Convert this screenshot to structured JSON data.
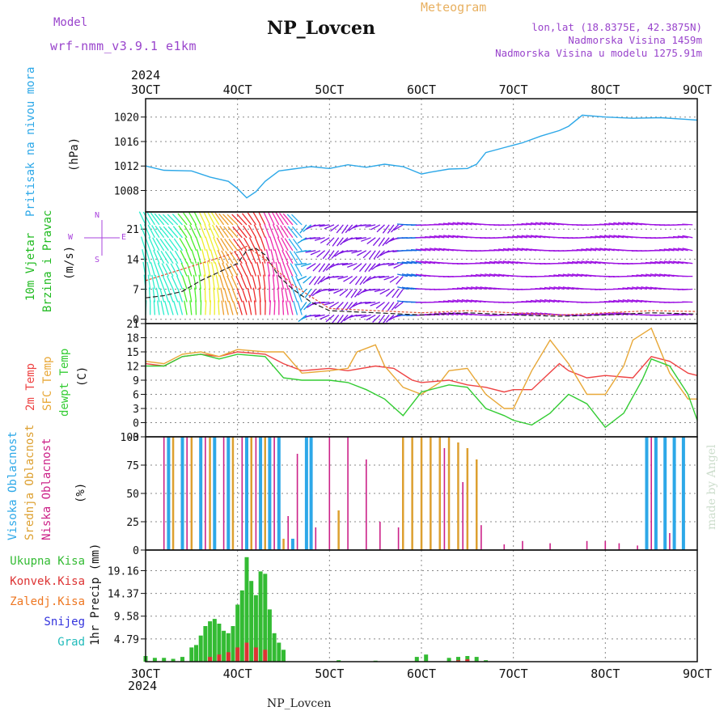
{
  "header": {
    "model_label": "Model",
    "model_name": "wrf-nmm_v3.9.1 e1km",
    "station": "NP_Lovcen",
    "product": "Meteogram",
    "coords": "lon,lat (18.8375E, 42.3875N)",
    "elevation": "Nadmorska Visina 1459m",
    "model_elevation": "Nadmorska Visina u modelu 1275.91m"
  },
  "footer": {
    "station": "NP_Lovcen",
    "credit": "made by Angel"
  },
  "time_axis": {
    "year": "2024",
    "ticks": [
      "3OCT",
      "4OCT",
      "5OCT",
      "6OCT",
      "7OCT",
      "8OCT",
      "9OCT"
    ]
  },
  "colors": {
    "pressure": "#2da8e8",
    "wind_label": "#22bb22",
    "wind_label2": "#22bb22",
    "wind_axis": "#aa44dd",
    "temp": "#ee4444",
    "sfc": "#e8a838",
    "dew": "#33cc33",
    "cloud_high": "#2da8e8",
    "cloud_mid": "#dda030",
    "cloud_low": "#cc2288",
    "precip_total": "#33bb33",
    "precip_conv": "#dd3333",
    "precip_frz": "#ee7722",
    "snow": "#3333dd",
    "grad": "#22bbbb",
    "grid": "#888888",
    "title": "#9944cc"
  },
  "panels": {
    "pressure": {
      "label": "Pritisak na nivou mora",
      "unit": "(hPa)",
      "ticks": [
        "1020",
        "1016",
        "1012",
        "1008"
      ]
    },
    "wind": {
      "label1": "10m Vjetar",
      "label2": "Brzina i Pravac",
      "unit": "(m/s)",
      "compass_n": "N",
      "compass_s": "S",
      "compass_w": "W",
      "compass_e": "E",
      "ticks": [
        "21",
        "14",
        "7",
        "0"
      ]
    },
    "temp": {
      "label1": "2m Temp",
      "label2": "SFC Temp",
      "label3": "dewpt Temp",
      "unit": "(C)",
      "ticks": [
        "21",
        "18",
        "15",
        "12",
        "9",
        "6",
        "3",
        "0",
        "-3"
      ]
    },
    "cloud": {
      "label1": "Visoka Oblacnost",
      "label2": "Srednja Oblacnost",
      "label3": "Niska Oblacnost",
      "unit": "(%)",
      "ticks": [
        "100",
        "75",
        "50",
        "25",
        "0"
      ]
    },
    "precip": {
      "label_total": "Ukupna Kisa",
      "label_conv": "Konvek.Kisa",
      "label_frz": "Zaledj.Kisa",
      "label_snow": "Snijeg",
      "label_grad": "Grad",
      "unit": "1hr Precip (mm)",
      "ticks": [
        "19.16",
        "14.37",
        "9.58",
        "4.79"
      ]
    }
  },
  "chart_data": [
    {
      "type": "line",
      "title": "Pritisak na nivou mora",
      "ylabel": "(hPa)",
      "x_unit": "day of October 2024",
      "ylim": [
        1004.5,
        1023
      ],
      "series": [
        {
          "name": "Pritisak na nivou mora",
          "x": [
            3.0,
            3.2,
            3.5,
            3.7,
            3.9,
            4.0,
            4.1,
            4.2,
            4.3,
            4.45,
            4.6,
            4.8,
            5.0,
            5.2,
            5.4,
            5.6,
            5.8,
            6.0,
            6.1,
            6.3,
            6.5,
            6.6,
            6.7,
            6.9,
            7.1,
            7.3,
            7.5,
            7.6,
            7.75,
            8.0,
            8.3,
            8.6,
            8.9,
            9.0
          ],
          "values": [
            1012.0,
            1011.3,
            1011.2,
            1010.2,
            1009.5,
            1008.3,
            1006.8,
            1007.8,
            1009.5,
            1011.2,
            1011.5,
            1011.9,
            1011.6,
            1012.2,
            1011.8,
            1012.3,
            1011.9,
            1010.7,
            1011.0,
            1011.5,
            1011.6,
            1012.3,
            1014.2,
            1015.0,
            1015.8,
            1016.9,
            1017.8,
            1018.5,
            1020.3,
            1020.0,
            1019.8,
            1019.9,
            1019.6,
            1019.5
          ]
        }
      ]
    },
    {
      "type": "line",
      "title": "10m Vjetar Brzina i Pravac",
      "ylabel": "(m/s)",
      "x_unit": "day of October 2024",
      "ylim": [
        -1,
        25
      ],
      "series": [
        {
          "name": "10m Vjetar",
          "x": [
            3.0,
            3.2,
            3.4,
            3.6,
            3.8,
            4.0,
            4.1,
            4.2,
            4.3,
            4.45,
            4.6,
            4.8,
            5.0,
            5.5,
            6.0,
            6.5,
            7.0,
            7.5,
            8.0,
            8.5,
            9.0
          ],
          "values": [
            5,
            5.5,
            6.5,
            9,
            11,
            13,
            16,
            16.5,
            15,
            10,
            7,
            4,
            2,
            1.5,
            1,
            1.5,
            1,
            0.7,
            1,
            1.5,
            1.2
          ]
        },
        {
          "name": "",
          "x": [
            3.0,
            3.3,
            3.6,
            3.9,
            4.1,
            4.3,
            4.6,
            5.0,
            5.5,
            6.0,
            6.5,
            7.0,
            7.5,
            8.0,
            8.5,
            9.0
          ],
          "values": [
            9,
            11,
            13,
            15,
            17,
            14,
            8,
            2.5,
            2,
            1.5,
            2,
            1.5,
            1,
            1.5,
            2,
            1.8
          ]
        }
      ]
    },
    {
      "type": "line",
      "title": "2m Temp / SFC Temp / dewpt Temp",
      "ylabel": "(C)",
      "x_unit": "day of October 2024",
      "ylim": [
        -3,
        21
      ],
      "series": [
        {
          "name": "2m Temp",
          "x": [
            3.0,
            3.2,
            3.4,
            3.6,
            3.8,
            4.0,
            4.3,
            4.5,
            4.7,
            5.0,
            5.2,
            5.5,
            5.7,
            5.9,
            6.0,
            6.3,
            6.5,
            6.7,
            6.9,
            7.0,
            7.2,
            7.5,
            7.6,
            7.8,
            8.0,
            8.3,
            8.5,
            8.7,
            8.9,
            9.0
          ],
          "values": [
            12.5,
            12.0,
            14.0,
            14.5,
            14.0,
            15.0,
            14.5,
            12.5,
            11.0,
            11.5,
            11.0,
            12.0,
            11.5,
            9.0,
            8.5,
            9.0,
            8.0,
            7.5,
            6.5,
            7.0,
            7.0,
            12.5,
            11.0,
            9.5,
            10.0,
            9.5,
            14.0,
            13.0,
            10.5,
            10.0
          ]
        },
        {
          "name": "SFC Temp",
          "x": [
            3.0,
            3.2,
            3.4,
            3.6,
            3.8,
            4.0,
            4.3,
            4.5,
            4.7,
            5.0,
            5.2,
            5.3,
            5.5,
            5.6,
            5.8,
            6.0,
            6.2,
            6.3,
            6.5,
            6.7,
            6.9,
            7.0,
            7.2,
            7.4,
            7.6,
            7.8,
            8.0,
            8.2,
            8.3,
            8.5,
            8.7,
            8.9,
            9.0
          ],
          "values": [
            13.0,
            12.5,
            14.5,
            15.0,
            14.0,
            15.5,
            15.0,
            15.0,
            10.5,
            11.0,
            11.5,
            15.0,
            16.5,
            12.0,
            7.5,
            6.0,
            8.5,
            11.0,
            11.5,
            6.0,
            3.0,
            3.0,
            11.0,
            17.5,
            12.5,
            6.0,
            6.0,
            12.0,
            17.5,
            20.0,
            10.5,
            5.0,
            5.0
          ]
        },
        {
          "name": "dewpt Temp",
          "x": [
            3.0,
            3.2,
            3.4,
            3.6,
            3.8,
            4.0,
            4.3,
            4.5,
            4.7,
            5.0,
            5.2,
            5.4,
            5.6,
            5.8,
            6.0,
            6.3,
            6.5,
            6.7,
            6.9,
            7.0,
            7.2,
            7.4,
            7.6,
            7.8,
            8.0,
            8.2,
            8.4,
            8.5,
            8.7,
            8.9,
            9.0
          ],
          "values": [
            12.0,
            12.0,
            14.0,
            14.5,
            13.5,
            14.5,
            14.0,
            9.5,
            9.0,
            9.0,
            8.5,
            7.0,
            5.0,
            1.5,
            6.5,
            8.0,
            7.5,
            3.0,
            1.5,
            0.5,
            -0.5,
            2.0,
            6.0,
            4.0,
            -1.0,
            2.0,
            9.0,
            13.5,
            12.0,
            6.0,
            0.5
          ]
        }
      ]
    },
    {
      "type": "bar",
      "title": "Visoka / Srednja / Niska Oblacnost",
      "ylabel": "(%)",
      "x_unit": "day of October 2024",
      "ylim": [
        0,
        100
      ],
      "series": [
        {
          "name": "Visoka Oblacnost",
          "x": [
            3.25,
            3.4,
            3.6,
            3.75,
            3.9,
            4.1,
            4.25,
            4.35,
            4.45,
            4.6,
            4.75,
            4.8,
            8.45,
            8.55,
            8.65,
            8.75,
            8.85
          ],
          "values": [
            100,
            100,
            100,
            100,
            100,
            100,
            100,
            100,
            100,
            10,
            100,
            100,
            100,
            100,
            100,
            100,
            100
          ]
        },
        {
          "name": "Srednja Oblacnost",
          "x": [
            3.3,
            3.5,
            3.7,
            3.95,
            4.15,
            4.3,
            4.5,
            5.1,
            5.8,
            5.9,
            6.0,
            6.1,
            6.2,
            6.3,
            6.4,
            6.5,
            6.6
          ],
          "values": [
            100,
            100,
            100,
            100,
            100,
            100,
            10,
            35,
            100,
            100,
            100,
            100,
            100,
            100,
            95,
            90,
            80
          ]
        },
        {
          "name": "Niska Oblacnost",
          "x": [
            3.2,
            3.45,
            3.65,
            3.85,
            4.05,
            4.2,
            4.4,
            4.55,
            4.65,
            4.85,
            5.0,
            5.2,
            5.4,
            5.55,
            5.75,
            6.25,
            6.45,
            6.65,
            6.9,
            7.1,
            7.4,
            7.8,
            8.0,
            8.15,
            8.35,
            8.5,
            8.7
          ],
          "values": [
            100,
            100,
            100,
            100,
            100,
            100,
            100,
            30,
            85,
            20,
            100,
            100,
            80,
            25,
            20,
            90,
            60,
            22,
            5,
            8,
            6,
            8,
            8,
            6,
            4,
            100,
            15
          ]
        }
      ]
    },
    {
      "type": "bar",
      "title": "1hr Precip",
      "ylabel": "1hr Precip (mm)",
      "x_unit": "day of October 2024",
      "ylim": [
        0,
        23.5
      ],
      "series": [
        {
          "name": "Ukupna Kisa",
          "x": [
            3.0,
            3.1,
            3.2,
            3.3,
            3.4,
            3.5,
            3.55,
            3.6,
            3.65,
            3.7,
            3.75,
            3.8,
            3.85,
            3.9,
            3.95,
            4.0,
            4.05,
            4.1,
            4.15,
            4.2,
            4.25,
            4.3,
            4.35,
            4.4,
            4.45,
            4.5,
            5.1,
            5.5,
            5.95,
            6.05,
            6.3,
            6.4,
            6.5,
            6.6,
            6.7
          ],
          "values": [
            1.2,
            0.8,
            0.8,
            0.6,
            1.0,
            3.0,
            3.5,
            5.5,
            7.5,
            8.5,
            9.0,
            8.0,
            6.5,
            6.0,
            7.5,
            12.0,
            15.0,
            22.0,
            17.0,
            14.0,
            19.0,
            18.5,
            11.0,
            6.0,
            4.0,
            2.5,
            0.3,
            0.2,
            1.0,
            1.5,
            0.8,
            1.0,
            1.2,
            1.0,
            0.3
          ]
        },
        {
          "name": "Konvek.Kisa",
          "x": [
            3.7,
            3.8,
            3.9,
            4.0,
            4.1,
            4.2,
            4.3,
            6.4,
            6.5
          ],
          "values": [
            1.0,
            1.5,
            2.0,
            3.0,
            4.0,
            3.0,
            2.5,
            0.3,
            0.5
          ]
        }
      ]
    }
  ]
}
